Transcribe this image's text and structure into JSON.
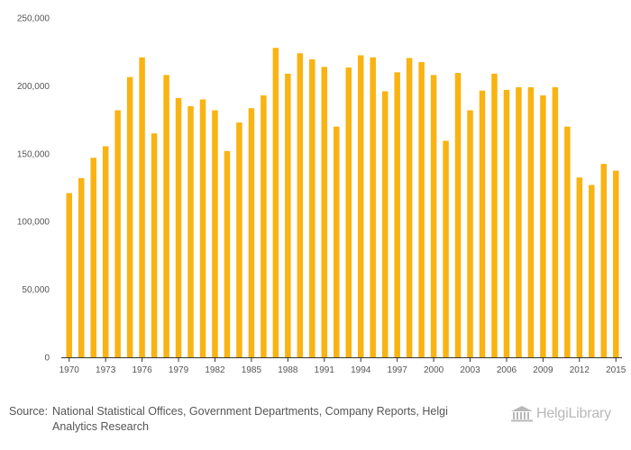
{
  "colors": {
    "bar": "#F9B312",
    "axis": "#333333",
    "text": "#555555",
    "logo": "#B8B8B8"
  },
  "chart_data": {
    "type": "bar",
    "title": "",
    "xlabel": "",
    "ylabel": "",
    "categories": [
      1970,
      1971,
      1972,
      1973,
      1974,
      1975,
      1976,
      1977,
      1978,
      1979,
      1980,
      1981,
      1982,
      1983,
      1984,
      1985,
      1986,
      1987,
      1988,
      1989,
      1990,
      1991,
      1992,
      1993,
      1994,
      1995,
      1996,
      1997,
      1998,
      1999,
      2000,
      2001,
      2002,
      2003,
      2004,
      2005,
      2006,
      2007,
      2008,
      2009,
      2010,
      2011,
      2012,
      2013,
      2014,
      2015
    ],
    "values": [
      121000,
      132000,
      147000,
      155500,
      182000,
      206500,
      221000,
      165000,
      208000,
      191000,
      185000,
      190000,
      182000,
      152000,
      173000,
      183500,
      193000,
      228000,
      209000,
      224000,
      219500,
      214000,
      170000,
      213500,
      222500,
      221000,
      196000,
      210000,
      220500,
      217500,
      208000,
      159500,
      209500,
      182000,
      196500,
      209000,
      197000,
      199000,
      199000,
      193000,
      199000,
      170000,
      132500,
      127000,
      142500,
      137500
    ],
    "ylim": [
      0,
      250000
    ],
    "yticks": [
      0,
      50000,
      100000,
      150000,
      200000,
      250000
    ],
    "ytick_labels": [
      "0",
      "50,000",
      "100,000",
      "150,000",
      "200,000",
      "250,000"
    ],
    "xtick_labels": [
      "1970",
      "1973",
      "1976",
      "1979",
      "1982",
      "1985",
      "1988",
      "1991",
      "1994",
      "1997",
      "2000",
      "2003",
      "2006",
      "2009",
      "2012",
      "2015"
    ],
    "grid": false,
    "legend": "none"
  },
  "footer": {
    "source_label": "Source:",
    "source_text": "National Statistical Offices, Government Departments, Company Reports, Helgi Analytics Research",
    "logo_text": "HelgiLibrary",
    "logo_icon": "building-columns-icon"
  }
}
